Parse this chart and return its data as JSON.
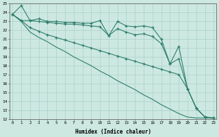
{
  "xlabel": "Humidex (Indice chaleur)",
  "x": [
    0,
    1,
    2,
    3,
    4,
    5,
    6,
    7,
    8,
    9,
    10,
    11,
    12,
    13,
    14,
    15,
    16,
    17,
    18,
    19,
    20,
    21,
    22,
    23
  ],
  "line_top": [
    23.8,
    24.8,
    23.1,
    23.3,
    23.0,
    23.0,
    22.9,
    22.9,
    22.8,
    22.8,
    23.1,
    21.4,
    23.0,
    22.5,
    22.4,
    22.5,
    22.3,
    21.0,
    18.2,
    20.2,
    15.4,
    13.2,
    12.2,
    12.1
  ],
  "line_mid_upper": [
    23.8,
    23.1,
    23.1,
    23.0,
    22.9,
    22.8,
    22.7,
    22.7,
    22.6,
    22.5,
    22.4,
    21.4,
    22.2,
    21.8,
    21.5,
    21.6,
    21.3,
    20.5,
    18.2,
    18.8,
    15.4,
    13.2,
    12.2,
    12.1
  ],
  "line_mid_lower": [
    23.8,
    23.1,
    22.3,
    21.9,
    21.5,
    21.2,
    20.9,
    20.6,
    20.3,
    20.0,
    19.7,
    19.4,
    19.1,
    18.8,
    18.5,
    18.2,
    17.9,
    17.6,
    17.3,
    17.0,
    15.4,
    13.2,
    12.2,
    12.1
  ],
  "line_bottom": [
    23.8,
    23.0,
    21.8,
    21.2,
    20.7,
    20.1,
    19.6,
    19.0,
    18.5,
    18.0,
    17.4,
    16.9,
    16.3,
    15.8,
    15.3,
    14.7,
    14.2,
    13.6,
    13.1,
    12.6,
    12.2,
    12.1,
    12.1,
    12.1
  ],
  "line_color": "#2e7d6d",
  "bg_color": "#cce8e0",
  "grid_color": "#aad0c8",
  "ylim": [
    12,
    25
  ],
  "yticks": [
    12,
    13,
    14,
    15,
    16,
    17,
    18,
    19,
    20,
    21,
    22,
    23,
    24,
    25
  ],
  "xticks": [
    0,
    1,
    2,
    3,
    4,
    5,
    6,
    7,
    8,
    9,
    10,
    11,
    12,
    13,
    14,
    15,
    16,
    17,
    18,
    19,
    20,
    21,
    22,
    23
  ]
}
